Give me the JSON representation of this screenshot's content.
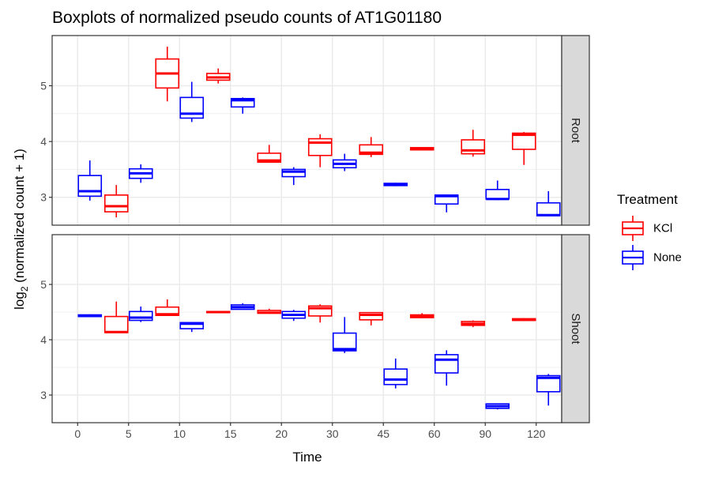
{
  "chart_data": {
    "type": "boxplot",
    "title": "Boxplots of normalized pseudo counts of AT1G01180",
    "xlabel": "Time",
    "ylabel": "log₂ (normalized count + 1)",
    "ylabel_main": "log",
    "ylabel_sub": "2",
    "ylabel_rest": " (normalized count + 1)",
    "categories": [
      "0",
      "5",
      "10",
      "15",
      "20",
      "30",
      "45",
      "60",
      "90",
      "120"
    ],
    "ylim": [
      2.5,
      5.9
    ],
    "yticks": [
      3,
      4,
      5
    ],
    "ytick_labels": [
      "3",
      "4",
      "5"
    ],
    "legend": {
      "title": "Treatment",
      "position": "right",
      "items": [
        {
          "name": "KCl",
          "color": "#ff0000"
        },
        {
          "name": "None",
          "color": "#0000ff"
        }
      ]
    },
    "panels": [
      {
        "strip": "Root",
        "series": [
          {
            "name": "KCl",
            "color": "#ff0000",
            "boxes": [
              {
                "x": "5",
                "min": 2.64,
                "q1": 2.74,
                "median": 2.84,
                "q3": 3.04,
                "max": 3.22
              },
              {
                "x": "10",
                "min": 4.72,
                "q1": 4.96,
                "median": 5.22,
                "q3": 5.48,
                "max": 5.7
              },
              {
                "x": "15",
                "min": 5.04,
                "q1": 5.1,
                "median": 5.15,
                "q3": 5.22,
                "max": 5.31
              },
              {
                "x": "20",
                "min": 3.62,
                "q1": 3.63,
                "median": 3.66,
                "q3": 3.79,
                "max": 3.94
              },
              {
                "x": "30",
                "min": 3.54,
                "q1": 3.75,
                "median": 3.98,
                "q3": 4.05,
                "max": 4.13
              },
              {
                "x": "45",
                "min": 3.72,
                "q1": 3.77,
                "median": 3.8,
                "q3": 3.94,
                "max": 4.08
              },
              {
                "x": "60",
                "min": 3.84,
                "q1": 3.85,
                "median": 3.87,
                "q3": 3.89,
                "max": 3.9
              },
              {
                "x": "90",
                "min": 3.73,
                "q1": 3.78,
                "median": 3.84,
                "q3": 4.03,
                "max": 4.21
              },
              {
                "x": "120",
                "min": 3.58,
                "q1": 3.86,
                "median": 4.12,
                "q3": 4.15,
                "max": 4.17
              }
            ]
          },
          {
            "name": "None",
            "color": "#0000ff",
            "boxes": [
              {
                "x": "0",
                "min": 2.94,
                "q1": 3.02,
                "median": 3.11,
                "q3": 3.39,
                "max": 3.66
              },
              {
                "x": "5",
                "min": 3.26,
                "q1": 3.34,
                "median": 3.43,
                "q3": 3.51,
                "max": 3.59
              },
              {
                "x": "10",
                "min": 4.35,
                "q1": 4.42,
                "median": 4.5,
                "q3": 4.79,
                "max": 5.07
              },
              {
                "x": "15",
                "min": 4.5,
                "q1": 4.62,
                "median": 4.74,
                "q3": 4.77,
                "max": 4.79
              },
              {
                "x": "20",
                "min": 3.22,
                "q1": 3.37,
                "median": 3.46,
                "q3": 3.5,
                "max": 3.54
              },
              {
                "x": "30",
                "min": 3.47,
                "q1": 3.53,
                "median": 3.6,
                "q3": 3.67,
                "max": 3.78
              },
              {
                "x": "45",
                "min": 3.2,
                "q1": 3.21,
                "median": 3.23,
                "q3": 3.25,
                "max": 3.26
              },
              {
                "x": "60",
                "min": 2.73,
                "q1": 2.88,
                "median": 3.02,
                "q3": 3.04,
                "max": 3.05
              },
              {
                "x": "90",
                "min": 2.95,
                "q1": 2.97,
                "median": 2.97,
                "q3": 3.14,
                "max": 3.3
              },
              {
                "x": "120",
                "min": 2.66,
                "q1": 2.67,
                "median": 2.68,
                "q3": 2.9,
                "max": 3.11
              }
            ]
          }
        ]
      },
      {
        "strip": "Shoot",
        "series": [
          {
            "name": "KCl",
            "color": "#ff0000",
            "boxes": [
              {
                "x": "5",
                "min": 4.13,
                "q1": 4.13,
                "median": 4.14,
                "q3": 4.42,
                "max": 4.69
              },
              {
                "x": "10",
                "min": 4.44,
                "q1": 4.44,
                "median": 4.46,
                "q3": 4.59,
                "max": 4.73
              },
              {
                "x": "15",
                "min": 4.48,
                "q1": 4.49,
                "median": 4.5,
                "q3": 4.51,
                "max": 4.52
              },
              {
                "x": "20",
                "min": 4.47,
                "q1": 4.48,
                "median": 4.49,
                "q3": 4.53,
                "max": 4.56
              },
              {
                "x": "30",
                "min": 4.31,
                "q1": 4.43,
                "median": 4.57,
                "q3": 4.61,
                "max": 4.64
              },
              {
                "x": "45",
                "min": 4.26,
                "q1": 4.36,
                "median": 4.45,
                "q3": 4.49,
                "max": 4.5
              },
              {
                "x": "60",
                "min": 4.39,
                "q1": 4.4,
                "median": 4.42,
                "q3": 4.45,
                "max": 4.48
              },
              {
                "x": "90",
                "min": 4.23,
                "q1": 4.26,
                "median": 4.29,
                "q3": 4.33,
                "max": 4.35
              },
              {
                "x": "120",
                "min": 4.34,
                "q1": 4.35,
                "median": 4.36,
                "q3": 4.38,
                "max": 4.39
              }
            ]
          },
          {
            "name": "None",
            "color": "#0000ff",
            "boxes": [
              {
                "x": "0",
                "min": 4.41,
                "q1": 4.42,
                "median": 4.43,
                "q3": 4.45,
                "max": 4.46
              },
              {
                "x": "5",
                "min": 4.32,
                "q1": 4.35,
                "median": 4.4,
                "q3": 4.51,
                "max": 4.6
              },
              {
                "x": "10",
                "min": 4.14,
                "q1": 4.2,
                "median": 4.29,
                "q3": 4.31,
                "max": 4.32
              },
              {
                "x": "15",
                "min": 4.55,
                "q1": 4.55,
                "median": 4.59,
                "q3": 4.63,
                "max": 4.66
              },
              {
                "x": "20",
                "min": 4.34,
                "q1": 4.39,
                "median": 4.45,
                "q3": 4.51,
                "max": 4.54
              },
              {
                "x": "30",
                "min": 3.76,
                "q1": 3.8,
                "median": 3.83,
                "q3": 4.12,
                "max": 4.41
              },
              {
                "x": "45",
                "min": 3.12,
                "q1": 3.19,
                "median": 3.28,
                "q3": 3.47,
                "max": 3.66
              },
              {
                "x": "60",
                "min": 3.17,
                "q1": 3.4,
                "median": 3.64,
                "q3": 3.73,
                "max": 3.81
              },
              {
                "x": "90",
                "min": 2.74,
                "q1": 2.76,
                "median": 2.8,
                "q3": 2.84,
                "max": 2.85
              },
              {
                "x": "120",
                "min": 2.81,
                "q1": 3.06,
                "median": 3.31,
                "q3": 3.35,
                "max": 3.38
              }
            ]
          }
        ]
      }
    ]
  }
}
